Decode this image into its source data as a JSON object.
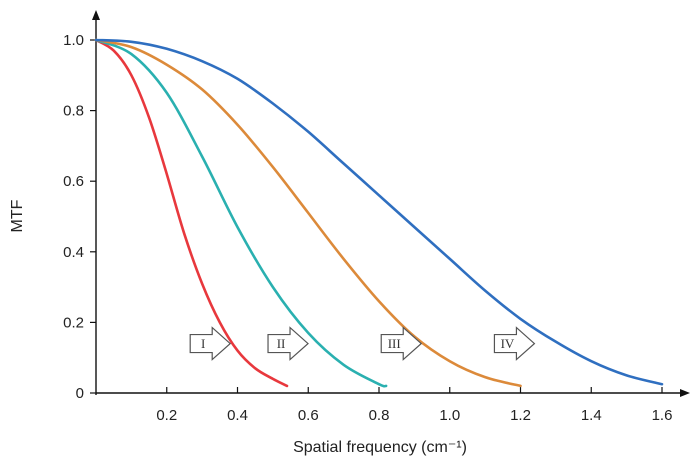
{
  "chart_data": {
    "type": "line",
    "xlabel": "Spatial frequency (cm⁻¹)",
    "ylabel": "MTF",
    "xlim": [
      0,
      1.65
    ],
    "ylim": [
      0,
      1.05
    ],
    "x_ticks": [
      0.2,
      0.4,
      0.6,
      0.8,
      1.0,
      1.2,
      1.4,
      1.6
    ],
    "x_tick_labels": [
      "0.2",
      "0.4",
      "0.6",
      "0.8",
      "1.0",
      "1.2",
      "1.4",
      "1.6"
    ],
    "y_ticks": [
      0,
      0.2,
      0.4,
      0.6,
      0.8,
      1.0
    ],
    "y_tick_labels": [
      "0",
      "0.2",
      "0.4",
      "0.6",
      "0.8",
      "1.0"
    ],
    "grid": false,
    "series": [
      {
        "color": "#e8383d",
        "x": [
          0,
          0.05,
          0.1,
          0.15,
          0.2,
          0.25,
          0.3,
          0.35,
          0.4,
          0.45,
          0.5,
          0.54
        ],
        "y": [
          1.0,
          0.97,
          0.9,
          0.78,
          0.62,
          0.45,
          0.31,
          0.2,
          0.12,
          0.07,
          0.04,
          0.02
        ]
      },
      {
        "color": "#2ab0b0",
        "x": [
          0,
          0.1,
          0.2,
          0.3,
          0.4,
          0.5,
          0.6,
          0.7,
          0.8,
          0.82
        ],
        "y": [
          1.0,
          0.96,
          0.85,
          0.67,
          0.47,
          0.3,
          0.17,
          0.08,
          0.025,
          0.02
        ]
      },
      {
        "color": "#dc8a3a",
        "x": [
          0,
          0.1,
          0.2,
          0.3,
          0.4,
          0.5,
          0.6,
          0.7,
          0.8,
          0.9,
          1.0,
          1.1,
          1.2
        ],
        "y": [
          1.0,
          0.98,
          0.93,
          0.86,
          0.76,
          0.64,
          0.51,
          0.38,
          0.26,
          0.16,
          0.09,
          0.045,
          0.02
        ]
      },
      {
        "color": "#2f6fc0",
        "x": [
          0,
          0.1,
          0.2,
          0.3,
          0.4,
          0.5,
          0.6,
          0.7,
          0.8,
          0.9,
          1.0,
          1.1,
          1.2,
          1.3,
          1.4,
          1.5,
          1.6
        ],
        "y": [
          1.0,
          0.995,
          0.975,
          0.94,
          0.89,
          0.82,
          0.74,
          0.65,
          0.56,
          0.47,
          0.38,
          0.29,
          0.21,
          0.145,
          0.09,
          0.05,
          0.025
        ]
      }
    ],
    "annotations": [
      {
        "text": "I",
        "x": 0.32,
        "y": 0.14
      },
      {
        "text": "II",
        "x": 0.54,
        "y": 0.14
      },
      {
        "text": "III",
        "x": 0.86,
        "y": 0.14
      },
      {
        "text": "IV",
        "x": 1.18,
        "y": 0.14
      }
    ]
  }
}
